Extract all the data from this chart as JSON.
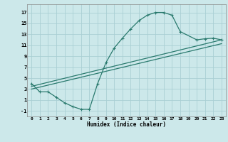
{
  "xlabel": "Humidex (Indice chaleur)",
  "background_color": "#cce8ea",
  "grid_color": "#aacfd4",
  "line_color": "#2a7a6e",
  "xlim": [
    -0.5,
    23.5
  ],
  "ylim": [
    -2,
    18.5
  ],
  "xticks": [
    0,
    1,
    2,
    3,
    4,
    5,
    6,
    7,
    8,
    9,
    10,
    11,
    12,
    13,
    14,
    15,
    16,
    17,
    18,
    19,
    20,
    21,
    22,
    23
  ],
  "yticks": [
    -1,
    1,
    3,
    5,
    7,
    9,
    11,
    13,
    15,
    17
  ],
  "main_curve_x": [
    0,
    1,
    2,
    3,
    4,
    5,
    6,
    7,
    8,
    9,
    10,
    11,
    12,
    13,
    14,
    15,
    16,
    17,
    18,
    20,
    21,
    22,
    23
  ],
  "main_curve_y": [
    4.0,
    2.5,
    2.5,
    1.5,
    0.5,
    -0.2,
    -0.7,
    -0.7,
    4.0,
    7.8,
    10.5,
    12.3,
    14.0,
    15.5,
    16.5,
    17.0,
    17.0,
    16.5,
    13.5,
    12.0,
    12.2,
    12.3,
    12.0
  ],
  "line1_x": [
    0,
    23
  ],
  "line1_y": [
    3.0,
    11.3
  ],
  "line2_x": [
    0,
    23
  ],
  "line2_y": [
    3.5,
    12.0
  ]
}
